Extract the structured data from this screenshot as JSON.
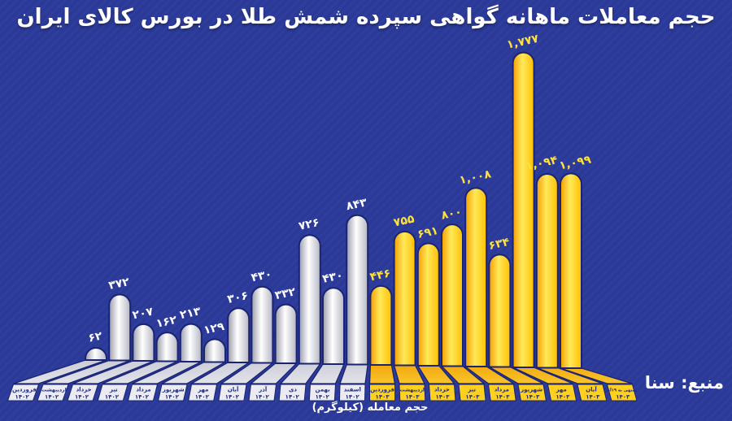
{
  "header": {
    "title": "حجم معاملات ماهانه گواهی سپرده شمش طلا در بورس کالای ایران"
  },
  "footer": {
    "axis_note": "حجم معامله (کیلوگرم)",
    "source": "منبع: سنا"
  },
  "colors": {
    "background": "#2b3a99",
    "outline_navy": "#1a2472",
    "silver_bar_center": "#ffffff",
    "silver_bar_edge": "#9b9caa",
    "gold_bar_center": "#ffe95a",
    "gold_bar_edge": "#f59e00",
    "silver_box_fill": "#ebebf1",
    "gold_box_fill": "#ffd01e",
    "value_label_silver": "#ffffff",
    "value_label_gold": "#ffe23c",
    "box_text": "#1d2b7d",
    "title_text": "#ffffff"
  },
  "chart_data": {
    "type": "bar",
    "title": "حجم معاملات ماهانه گواهی سپرده شمش طلا در بورس کالای ایران",
    "xlabel": "حجم معامله (کیلوگرم)",
    "unit": "کیلوگرم",
    "source": "سنا",
    "ylim": [
      0,
      1900
    ],
    "grid": false,
    "legend": "none",
    "groups": [
      {
        "id": "1402",
        "year_label": "۱۴۰۲",
        "color_scheme": "silver"
      },
      {
        "id": "1403",
        "year_label": "۱۴۰۳",
        "color_scheme": "gold"
      }
    ],
    "bars": [
      {
        "month": "فروردین",
        "year": "۱۴۰۲",
        "value": 62,
        "label": "۶۲",
        "group": "1402"
      },
      {
        "month": "اردیبهشت",
        "year": "۱۴۰۲",
        "value": 372,
        "label": "۳۷۲",
        "group": "1402"
      },
      {
        "month": "خرداد",
        "year": "۱۴۰۲",
        "value": 207,
        "label": "۲۰۷",
        "group": "1402"
      },
      {
        "month": "تیر",
        "year": "۱۴۰۲",
        "value": 162,
        "label": "۱۶۲",
        "group": "1402"
      },
      {
        "month": "مرداد",
        "year": "۱۴۰۲",
        "value": 213,
        "label": "۲۱۳",
        "group": "1402"
      },
      {
        "month": "شهریور",
        "year": "۱۴۰۲",
        "value": 129,
        "label": "۱۲۹",
        "group": "1402"
      },
      {
        "month": "مهر",
        "year": "۱۴۰۲",
        "value": 306,
        "label": "۳۰۶",
        "group": "1402"
      },
      {
        "month": "آبان",
        "year": "۱۴۰۲",
        "value": 430,
        "label": "۴۳۰",
        "group": "1402"
      },
      {
        "month": "آذر",
        "year": "۱۴۰۲",
        "value": 332,
        "label": "۳۳۲",
        "group": "1402"
      },
      {
        "month": "دی",
        "year": "۱۴۰۲",
        "value": 726,
        "label": "۷۲۶",
        "group": "1402"
      },
      {
        "month": "بهمن",
        "year": "۱۴۰۲",
        "value": 430,
        "label": "۴۳۰",
        "group": "1402"
      },
      {
        "month": "اسفند",
        "year": "۱۴۰۲",
        "value": 843,
        "label": "۸۴۳",
        "group": "1402"
      },
      {
        "month": "فروردین",
        "year": "۱۴۰۳",
        "value": 446,
        "label": "۴۴۶",
        "group": "1403"
      },
      {
        "month": "اردیبهشت",
        "year": "۱۴۰۳",
        "value": 755,
        "label": "۷۵۵",
        "group": "1403"
      },
      {
        "month": "خرداد",
        "year": "۱۴۰۳",
        "value": 691,
        "label": "۶۹۱",
        "group": "1403"
      },
      {
        "month": "تیر",
        "year": "۱۴۰۳",
        "value": 800,
        "label": "۸۰۰",
        "group": "1403"
      },
      {
        "month": "مرداد",
        "year": "۱۴۰۳",
        "value": 1008,
        "label": "۱,۰۰۸",
        "group": "1403"
      },
      {
        "month": "شهریور",
        "year": "۱۴۰۳",
        "value": 634,
        "label": "۶۳۴",
        "group": "1403"
      },
      {
        "month": "مهر",
        "year": "۱۴۰۳",
        "value": 1777,
        "label": "۱,۷۷۷",
        "group": "1403"
      },
      {
        "month": "آبان",
        "year": "۱۴۰۳",
        "value": 1094,
        "label": "۱,۰۹۴",
        "group": "1403"
      },
      {
        "month": "منتهی به ۱۹آذر",
        "year": "۱۴۰۳",
        "value": 1099,
        "label": "۱,۰۹۹",
        "group": "1403"
      }
    ]
  }
}
